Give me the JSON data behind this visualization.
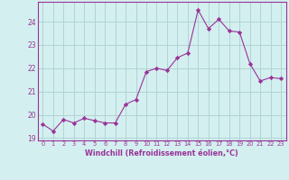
{
  "x": [
    0,
    1,
    2,
    3,
    4,
    5,
    6,
    7,
    8,
    9,
    10,
    11,
    12,
    13,
    14,
    15,
    16,
    17,
    18,
    19,
    20,
    21,
    22,
    23
  ],
  "y": [
    19.6,
    19.3,
    19.8,
    19.65,
    19.85,
    19.75,
    19.65,
    19.65,
    20.45,
    20.65,
    21.85,
    22.0,
    21.9,
    22.45,
    22.65,
    24.5,
    23.7,
    24.1,
    23.6,
    23.55,
    22.2,
    21.45,
    21.6,
    21.55
  ],
  "line_color": "#993399",
  "marker": "D",
  "marker_size": 2.2,
  "bg_color": "#d4efef",
  "grid_color": "#b0d4d4",
  "xlabel": "Windchill (Refroidissement éolien,°C)",
  "xlabel_color": "#993399",
  "tick_color": "#993399",
  "ylim": [
    18.9,
    24.85
  ],
  "yticks": [
    19,
    20,
    21,
    22,
    23,
    24
  ],
  "xlim": [
    -0.5,
    23.5
  ],
  "xticks": [
    0,
    1,
    2,
    3,
    4,
    5,
    6,
    7,
    8,
    9,
    10,
    11,
    12,
    13,
    14,
    15,
    16,
    17,
    18,
    19,
    20,
    21,
    22,
    23
  ]
}
